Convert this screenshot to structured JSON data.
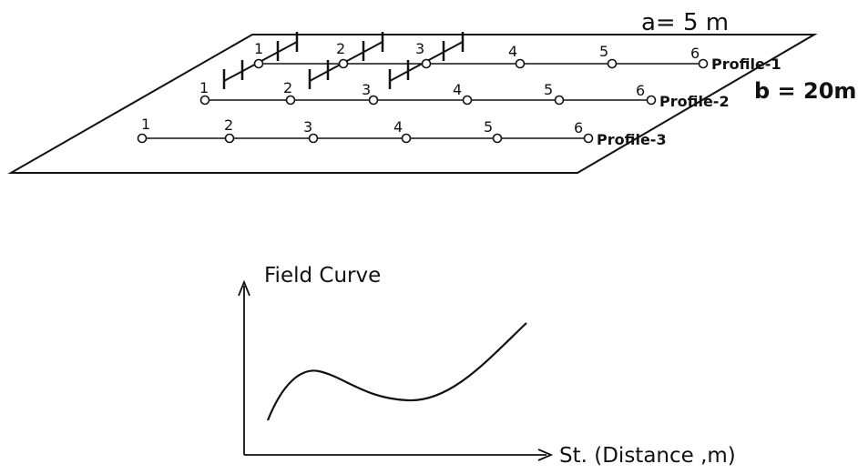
{
  "survey": {
    "spacing_a": "a= 5 m",
    "spacing_b": "b = 20m",
    "profiles": [
      {
        "name": "Profile-1",
        "stations": [
          "1",
          "2",
          "3",
          "4",
          "5",
          "6"
        ]
      },
      {
        "name": "Profile-2",
        "stations": [
          "1",
          "2",
          "3",
          "4",
          "5",
          "6"
        ]
      },
      {
        "name": "Profile-3",
        "stations": [
          "1",
          "2",
          "3",
          "4",
          "5",
          "6"
        ]
      }
    ]
  },
  "graph": {
    "title": "Field Curve",
    "x_label": "St. (Distance ,m)"
  },
  "colors": {
    "stroke": "#111111",
    "background": "#ffffff"
  }
}
